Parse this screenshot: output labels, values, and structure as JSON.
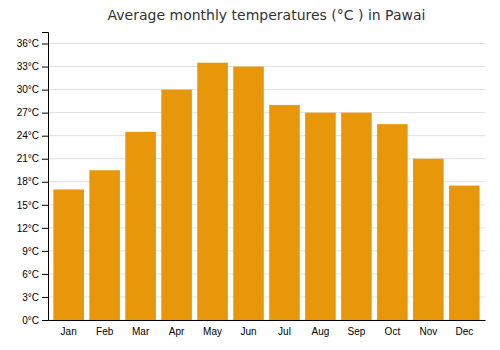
{
  "chart_data": {
    "type": "bar",
    "title": "Average monthly temperatures (°C ) in Pawai",
    "categories": [
      "Jan",
      "Feb",
      "Mar",
      "Apr",
      "May",
      "Jun",
      "Jul",
      "Aug",
      "Sep",
      "Oct",
      "Nov",
      "Dec"
    ],
    "values": [
      17,
      19.5,
      24.5,
      30,
      33.5,
      33,
      28,
      27,
      27,
      25.5,
      21,
      17.5
    ],
    "color": "#E8960A",
    "ylim": [
      0,
      37.5
    ],
    "yticks": [
      {
        "value": 0,
        "label": "0°C"
      },
      {
        "value": 3,
        "label": "3°C"
      },
      {
        "value": 6,
        "label": "6°C"
      },
      {
        "value": 9,
        "label": "9°C"
      },
      {
        "value": 12,
        "label": "12°C"
      },
      {
        "value": 15,
        "label": "15°C"
      },
      {
        "value": 18,
        "label": "18°C"
      },
      {
        "value": 21,
        "label": "21°C"
      },
      {
        "value": 24,
        "label": "24°C"
      },
      {
        "value": 27,
        "label": "27°C"
      },
      {
        "value": 30,
        "label": "30°C"
      },
      {
        "value": 33,
        "label": "33°C"
      },
      {
        "value": 36,
        "label": "36°C"
      }
    ],
    "grid": true
  }
}
